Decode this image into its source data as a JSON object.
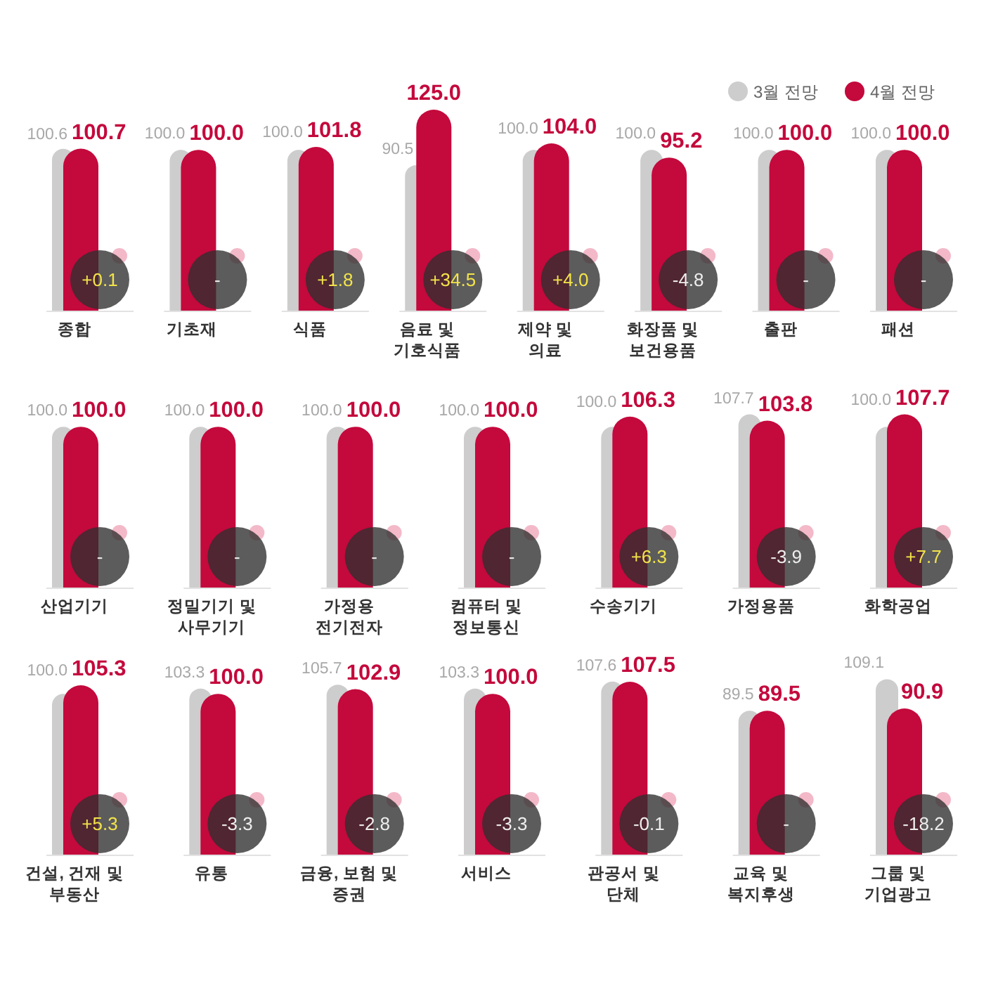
{
  "chart_data": [
    {
      "type": "bar",
      "legend": "top right",
      "categories": [
        "종합",
        "기초재",
        "식품",
        "음료 및\n기호식품",
        "제약 및\n의료",
        "화장품 및\n보건용품",
        "출판",
        "패션"
      ],
      "series": [
        {
          "name": "3월 전망",
          "color": "#cdcdcd",
          "values": [
            100.6,
            100.0,
            100.0,
            90.5,
            100.0,
            100.0,
            100.0,
            100.0
          ],
          "value_labels": [
            "100.6",
            "100.0",
            "100.0",
            "90.5",
            "100.0",
            "100.0",
            "100.0",
            "100.0"
          ]
        },
        {
          "name": "4월 전망",
          "color": "#c4093c",
          "values": [
            100.7,
            100.0,
            101.8,
            125.0,
            104.0,
            95.2,
            100.0,
            100.0
          ],
          "value_labels": [
            "100.7",
            "100.0",
            "101.8",
            "125.0",
            "104.0",
            "95.2",
            "100.0",
            "100.0"
          ]
        }
      ],
      "annotations": [
        "+0.1",
        "-",
        "+1.8",
        "+34.5",
        "+4.0",
        "-4.8",
        "-",
        "-"
      ]
    },
    {
      "type": "bar",
      "categories": [
        "산업기기",
        "정밀기기 및\n사무기기",
        "가정용\n전기전자",
        "컴퓨터 및\n정보통신",
        "수송기기",
        "가정용품",
        "화학공업"
      ],
      "series": [
        {
          "color": "#cdcdcd",
          "values": [
            100.0,
            100.0,
            100.0,
            100.0,
            100.0,
            107.7,
            100.0
          ],
          "value_labels": [
            "100.0",
            "100.0",
            "100.0",
            "100.0",
            "100.0",
            "107.7",
            "100.0"
          ]
        },
        {
          "color": "#c4093c",
          "values": [
            100.0,
            100.0,
            100.0,
            100.0,
            106.3,
            103.8,
            107.7
          ],
          "value_labels": [
            "100.0",
            "100.0",
            "100.0",
            "100.0",
            "106.3",
            "103.8",
            "107.7"
          ]
        }
      ],
      "annotations": [
        "-",
        "-",
        "-",
        "-",
        "+6.3",
        "-3.9",
        "+7.7"
      ]
    },
    {
      "type": "bar",
      "categories": [
        "건설, 건재 및\n부동산",
        "유통",
        "금융, 보험 및\n증권",
        "서비스",
        "관공서 및\n단체",
        "교육 및\n복지후생",
        "그룹 및\n기업광고"
      ],
      "series": [
        {
          "color": "#cdcdcd",
          "values": [
            100.0,
            103.3,
            105.7,
            103.3,
            107.6,
            89.5,
            109.1
          ],
          "value_labels": [
            "100.0",
            "103.3",
            "105.7",
            "103.3",
            "107.6",
            "89.5",
            "109.1"
          ]
        },
        {
          "color": "#c4093c",
          "values": [
            105.3,
            100.0,
            102.9,
            100.0,
            107.5,
            89.5,
            90.9
          ],
          "value_labels": [
            "105.3",
            "100.0",
            "102.9",
            "100.0",
            "107.5",
            "89.5",
            "90.9"
          ]
        }
      ],
      "annotations": [
        "+5.3",
        "-3.3",
        "-2.8",
        "-3.3",
        "-0.1",
        "-",
        "-18.2"
      ]
    }
  ]
}
